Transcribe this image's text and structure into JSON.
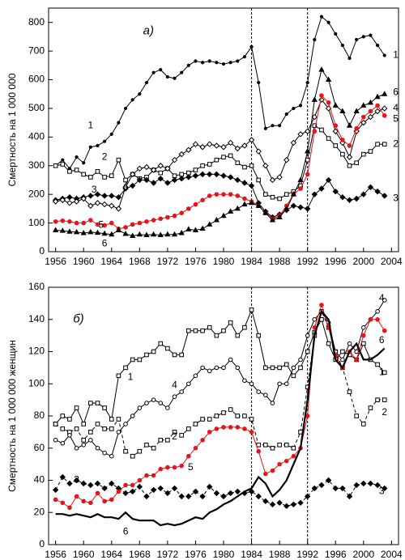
{
  "chart_data": [
    {
      "type": "line",
      "title": "a)",
      "y_label": "Смертность на 1 000 000",
      "x": [
        1956,
        1957,
        1958,
        1959,
        1960,
        1961,
        1962,
        1963,
        1964,
        1965,
        1966,
        1967,
        1968,
        1969,
        1970,
        1971,
        1972,
        1973,
        1974,
        1975,
        1976,
        1977,
        1978,
        1979,
        1980,
        1981,
        1982,
        1983,
        1984,
        1985,
        1986,
        1987,
        1988,
        1989,
        1990,
        1991,
        1992,
        1993,
        1994,
        1995,
        1996,
        1997,
        1998,
        1999,
        2000,
        2001,
        2002,
        2003
      ],
      "xlim": [
        1955,
        2005
      ],
      "xticks": [
        1956,
        1960,
        1964,
        1968,
        1972,
        1976,
        1980,
        1984,
        1988,
        1992,
        1996,
        2000,
        2004
      ],
      "ylim": [
        0,
        850
      ],
      "yticks": [
        0,
        100,
        200,
        300,
        400,
        500,
        600,
        700,
        800
      ],
      "vlines": [
        1984,
        1992
      ],
      "series": [
        {
          "name": "1",
          "color": "#000000",
          "marker": "dot",
          "dash": false,
          "values": [
            300,
            320,
            290,
            330,
            310,
            365,
            370,
            385,
            410,
            450,
            500,
            530,
            550,
            590,
            625,
            635,
            610,
            605,
            625,
            650,
            665,
            660,
            665,
            660,
            655,
            660,
            665,
            680,
            715,
            590,
            430,
            440,
            440,
            480,
            500,
            510,
            590,
            740,
            820,
            800,
            760,
            720,
            675,
            740,
            750,
            755,
            720,
            685
          ]
        },
        {
          "name": "2",
          "color": "#000000",
          "marker": "square-open",
          "dash": false,
          "values": [
            300,
            305,
            280,
            285,
            270,
            260,
            280,
            260,
            265,
            320,
            250,
            270,
            255,
            260,
            285,
            275,
            290,
            265,
            270,
            275,
            285,
            300,
            305,
            320,
            330,
            335,
            310,
            295,
            300,
            250,
            200,
            190,
            185,
            200,
            210,
            230,
            320,
            440,
            425,
            395,
            370,
            340,
            300,
            310,
            340,
            350,
            375,
            375
          ]
        },
        {
          "name": "3",
          "color": "#000000",
          "marker": "diamond-filled",
          "dash": false,
          "values": [
            180,
            185,
            190,
            185,
            190,
            195,
            200,
            195,
            195,
            190,
            220,
            230,
            250,
            250,
            240,
            255,
            240,
            250,
            255,
            260,
            265,
            270,
            270,
            270,
            265,
            260,
            250,
            240,
            230,
            170,
            140,
            120,
            130,
            145,
            160,
            155,
            150,
            200,
            220,
            250,
            210,
            190,
            180,
            185,
            200,
            225,
            210,
            195
          ]
        },
        {
          "name": "4",
          "color": "#000000",
          "marker": "diamond-open",
          "dash": false,
          "values": [
            175,
            180,
            170,
            175,
            185,
            160,
            170,
            165,
            160,
            150,
            225,
            270,
            290,
            295,
            285,
            300,
            290,
            320,
            340,
            355,
            375,
            365,
            375,
            370,
            365,
            380,
            360,
            370,
            390,
            350,
            300,
            250,
            260,
            320,
            380,
            410,
            420,
            470,
            530,
            500,
            420,
            380,
            330,
            420,
            450,
            470,
            490,
            500
          ]
        },
        {
          "name": "5",
          "color": "#e8141b",
          "marker": "circle-filled",
          "dash": false,
          "values": [
            105,
            108,
            105,
            100,
            100,
            110,
            95,
            92,
            100,
            80,
            85,
            95,
            100,
            105,
            110,
            115,
            120,
            125,
            135,
            150,
            165,
            180,
            195,
            200,
            200,
            200,
            195,
            185,
            175,
            160,
            135,
            115,
            125,
            160,
            200,
            220,
            270,
            420,
            545,
            520,
            440,
            390,
            370,
            430,
            470,
            490,
            510,
            475
          ]
        },
        {
          "name": "6",
          "color": "#000000",
          "marker": "triangle",
          "dash": false,
          "values": [
            75,
            73,
            70,
            68,
            65,
            68,
            66,
            63,
            60,
            75,
            62,
            55,
            60,
            58,
            60,
            58,
            60,
            60,
            65,
            78,
            75,
            80,
            95,
            110,
            125,
            140,
            150,
            165,
            170,
            160,
            135,
            110,
            120,
            150,
            200,
            250,
            350,
            530,
            635,
            600,
            510,
            490,
            440,
            490,
            510,
            520,
            540,
            550
          ]
        }
      ]
    },
    {
      "type": "line",
      "title": "б)",
      "y_label": "Смертность на 1 000 000 женщин",
      "x": [
        1956,
        1957,
        1958,
        1959,
        1960,
        1961,
        1962,
        1963,
        1964,
        1965,
        1966,
        1967,
        1968,
        1969,
        1970,
        1971,
        1972,
        1973,
        1974,
        1975,
        1976,
        1977,
        1978,
        1979,
        1980,
        1981,
        1982,
        1983,
        1984,
        1985,
        1986,
        1987,
        1988,
        1989,
        1990,
        1991,
        1992,
        1993,
        1994,
        1995,
        1996,
        1997,
        1998,
        1999,
        2000,
        2001,
        2002,
        2003
      ],
      "xlim": [
        1955,
        2005
      ],
      "xticks": [
        1956,
        1960,
        1964,
        1968,
        1972,
        1976,
        1980,
        1984,
        1988,
        1992,
        1996,
        2000,
        2004
      ],
      "ylim": [
        0,
        160
      ],
      "yticks": [
        0,
        20,
        40,
        60,
        80,
        100,
        120,
        140,
        160
      ],
      "vlines": [
        1984,
        1992
      ],
      "series": [
        {
          "name": "1",
          "color": "#000000",
          "marker": "square-open",
          "dash": false,
          "values": [
            75,
            80,
            78,
            85,
            75,
            88,
            88,
            85,
            78,
            105,
            110,
            115,
            115,
            118,
            120,
            125,
            122,
            118,
            118,
            133,
            133,
            133,
            135,
            130,
            133,
            138,
            130,
            135,
            146,
            130,
            110,
            110,
            110,
            112,
            105,
            110,
            120,
            132,
            140,
            125,
            115,
            120,
            118,
            115,
            125,
            115,
            112,
            107
          ]
        },
        {
          "name": "2",
          "color": "#000000",
          "marker": "square-open",
          "dash": true,
          "values": [
            75,
            72,
            70,
            72,
            65,
            70,
            75,
            72,
            72,
            78,
            58,
            55,
            58,
            62,
            60,
            65,
            65,
            70,
            68,
            72,
            75,
            78,
            78,
            80,
            82,
            84,
            80,
            80,
            78,
            62,
            62,
            60,
            62,
            62,
            60,
            70,
            98,
            130,
            145,
            135,
            120,
            110,
            95,
            80,
            75,
            85,
            90,
            90
          ]
        },
        {
          "name": "3",
          "color": "#000000",
          "marker": "diamond-filled",
          "dash": true,
          "values": [
            34,
            42,
            38,
            40,
            38,
            37,
            38,
            35,
            38,
            35,
            32,
            33,
            36,
            30,
            34,
            35,
            32,
            35,
            30,
            30,
            33,
            30,
            36,
            32,
            30,
            32,
            33,
            32,
            33,
            30,
            27,
            25,
            26,
            24,
            25,
            26,
            30,
            35,
            37,
            40,
            35,
            35,
            30,
            37,
            38,
            38,
            37,
            35
          ]
        },
        {
          "name": "4",
          "color": "#000000",
          "marker": "circle-open",
          "dash": false,
          "values": [
            65,
            63,
            68,
            60,
            62,
            65,
            60,
            57,
            55,
            70,
            75,
            80,
            85,
            88,
            90,
            88,
            85,
            92,
            95,
            100,
            105,
            110,
            108,
            110,
            110,
            115,
            110,
            102,
            100,
            95,
            93,
            88,
            100,
            100,
            110,
            115,
            130,
            140,
            145,
            138,
            120,
            115,
            125,
            120,
            135,
            140,
            145,
            152
          ]
        },
        {
          "name": "5",
          "color": "#e8141b",
          "marker": "circle-filled",
          "dash": false,
          "values": [
            28,
            26,
            23,
            30,
            27,
            26,
            32,
            27,
            28,
            33,
            37,
            37,
            40,
            43,
            43,
            47,
            48,
            48,
            49,
            55,
            60,
            65,
            70,
            72,
            73,
            73,
            73,
            72,
            70,
            58,
            44,
            46,
            50,
            52,
            55,
            60,
            80,
            135,
            149,
            135,
            118,
            110,
            120,
            115,
            130,
            140,
            140,
            133
          ]
        },
        {
          "name": "6",
          "color": "#000000",
          "marker": "none",
          "dash": false,
          "values": [
            19,
            19,
            18,
            19,
            18,
            17,
            19,
            17,
            17,
            16,
            20,
            16,
            15,
            15,
            15,
            12,
            13,
            12,
            13,
            15,
            17,
            16,
            20,
            22,
            25,
            27,
            30,
            33,
            35,
            42,
            38,
            30,
            34,
            40,
            50,
            60,
            90,
            130,
            145,
            140,
            115,
            110,
            120,
            125,
            115,
            115,
            118,
            122
          ]
        }
      ]
    }
  ]
}
